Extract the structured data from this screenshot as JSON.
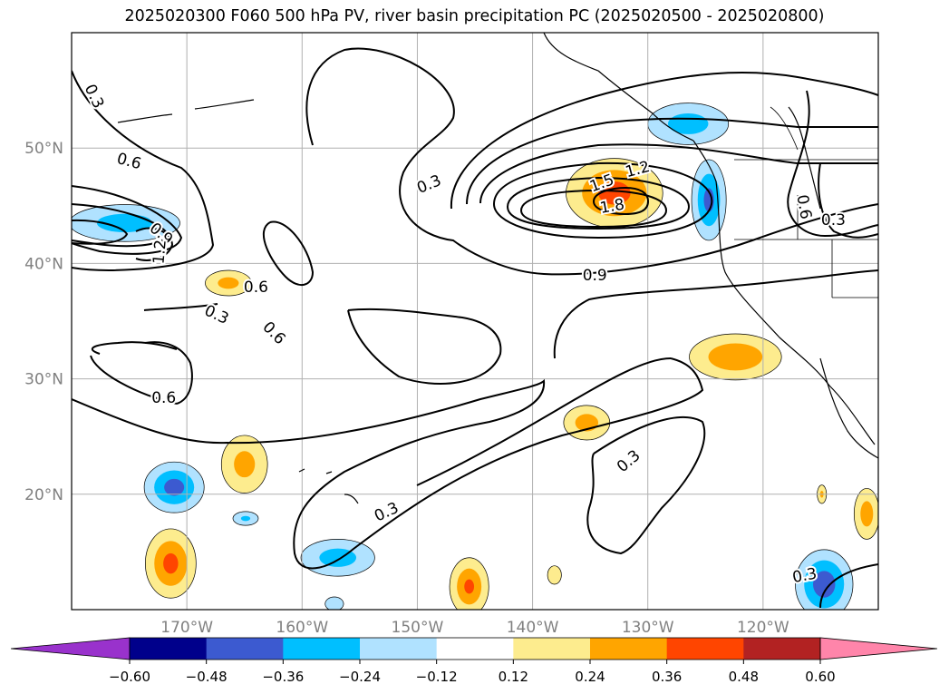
{
  "chart_data": {
    "type": "contour map",
    "title": "2025020300 F060 500 hPa PV, river basin precipitation PC (2025020500 - 2025020800)",
    "lon_range": [
      -180,
      -110
    ],
    "lat_range": [
      10,
      60
    ],
    "lon_ticks": [
      {
        "value": -170,
        "label": "170°W"
      },
      {
        "value": -160,
        "label": "160°W"
      },
      {
        "value": -150,
        "label": "150°W"
      },
      {
        "value": -140,
        "label": "140°W"
      },
      {
        "value": -130,
        "label": "130°W"
      },
      {
        "value": -120,
        "label": "120°W"
      }
    ],
    "lat_ticks": [
      {
        "value": 50,
        "label": "50°N"
      },
      {
        "value": 40,
        "label": "40°N"
      },
      {
        "value": 30,
        "label": "30°N"
      },
      {
        "value": 20,
        "label": "20°N"
      }
    ],
    "grid": true,
    "pv_contour_levels": [
      0.3,
      0.6,
      0.9,
      1.2,
      1.5,
      1.8
    ],
    "pv_contour_labels": [
      {
        "text": "0.3",
        "lon": -178.0,
        "lat": 54.5,
        "rot": 65
      },
      {
        "text": "0.6",
        "lon": -175.0,
        "lat": 48.9,
        "rot": 15
      },
      {
        "text": "0.9",
        "lon": -172.2,
        "lat": 42.6,
        "rot": 40
      },
      {
        "text": "1.2",
        "lon": -172.4,
        "lat": 41.0,
        "rot": -85
      },
      {
        "text": "0.3",
        "lon": -149.0,
        "lat": 46.9,
        "rot": -22
      },
      {
        "text": "1.2",
        "lon": -130.9,
        "lat": 48.2,
        "rot": -15
      },
      {
        "text": "1.5",
        "lon": -134.0,
        "lat": 47.0,
        "rot": -20
      },
      {
        "text": "1.8",
        "lon": -133.1,
        "lat": 45.0,
        "rot": -10
      },
      {
        "text": "0.9",
        "lon": -134.6,
        "lat": 39.0,
        "rot": 0
      },
      {
        "text": "0.6",
        "lon": -164.0,
        "lat": 38.0,
        "rot": 0
      },
      {
        "text": "0.3",
        "lon": -167.4,
        "lat": 35.6,
        "rot": 25
      },
      {
        "text": "0.6",
        "lon": -162.4,
        "lat": 34.0,
        "rot": 45
      },
      {
        "text": "0.6",
        "lon": -172.0,
        "lat": 28.4,
        "rot": 0
      },
      {
        "text": "0.3",
        "lon": -131.7,
        "lat": 22.9,
        "rot": -40
      },
      {
        "text": "0.3",
        "lon": -152.7,
        "lat": 18.5,
        "rot": -25
      },
      {
        "text": "0.6",
        "lon": -116.4,
        "lat": 44.9,
        "rot": 80
      },
      {
        "text": "0.3",
        "lon": -113.9,
        "lat": 43.8,
        "rot": 0
      },
      {
        "text": "0.3",
        "lon": -116.4,
        "lat": 13.0,
        "rot": -10
      }
    ],
    "precip_pc_colorbar": {
      "levels": [
        "−0.60",
        "−0.48",
        "−0.36",
        "−0.24",
        "−0.12",
        "0.12",
        "0.24",
        "0.36",
        "0.48",
        "0.60"
      ],
      "colors": [
        "#9932cc",
        "#00008b",
        "#3c5ad0",
        "#00bfff",
        "#b0e2ff",
        "#ffffff",
        "#fdec8e",
        "#ffa500",
        "#ff4500",
        "#b22222",
        "#ff85aa"
      ],
      "extend": "both"
    },
    "precip_pc_features": [
      {
        "lon": -175.4,
        "lat": 43.5,
        "rx_deg": 4.8,
        "ry_deg": 1.6,
        "value": -0.3
      },
      {
        "lon": -132.9,
        "lat": 46.1,
        "rx_deg": 4.2,
        "ry_deg": 3.0,
        "value": 0.42
      },
      {
        "lon": -126.5,
        "lat": 52.1,
        "rx_deg": 3.5,
        "ry_deg": 1.8,
        "value": -0.3
      },
      {
        "lon": -124.7,
        "lat": 45.5,
        "rx_deg": 1.5,
        "ry_deg": 3.5,
        "value": -0.4
      },
      {
        "lon": -122.4,
        "lat": 31.9,
        "rx_deg": 4.0,
        "ry_deg": 2.0,
        "value": 0.35
      },
      {
        "lon": -135.3,
        "lat": 26.2,
        "rx_deg": 2.0,
        "ry_deg": 1.5,
        "value": 0.3
      },
      {
        "lon": -166.4,
        "lat": 38.3,
        "rx_deg": 2.0,
        "ry_deg": 1.1,
        "value": 0.28
      },
      {
        "lon": -165.0,
        "lat": 22.6,
        "rx_deg": 2.0,
        "ry_deg": 2.5,
        "value": 0.28
      },
      {
        "lon": -171.1,
        "lat": 20.6,
        "rx_deg": 2.6,
        "ry_deg": 2.2,
        "value": -0.42
      },
      {
        "lon": -164.9,
        "lat": 17.9,
        "rx_deg": 1.1,
        "ry_deg": 0.6,
        "value": -0.25
      },
      {
        "lon": -171.4,
        "lat": 14.0,
        "rx_deg": 2.2,
        "ry_deg": 3.0,
        "value": 0.4
      },
      {
        "lon": -156.9,
        "lat": 14.5,
        "rx_deg": 3.2,
        "ry_deg": 1.6,
        "value": -0.3
      },
      {
        "lon": -145.5,
        "lat": 12.0,
        "rx_deg": 1.7,
        "ry_deg": 2.5,
        "value": 0.38
      },
      {
        "lon": -138.1,
        "lat": 13.0,
        "rx_deg": 0.6,
        "ry_deg": 0.8,
        "value": 0.2
      },
      {
        "lon": -157.2,
        "lat": 10.5,
        "rx_deg": 0.8,
        "ry_deg": 0.6,
        "value": -0.22
      },
      {
        "lon": -114.7,
        "lat": 12.2,
        "rx_deg": 2.5,
        "ry_deg": 3.0,
        "value": -0.45
      },
      {
        "lon": -114.9,
        "lat": 20.0,
        "rx_deg": 0.4,
        "ry_deg": 0.8,
        "value": 0.25
      },
      {
        "lon": -111.0,
        "lat": 18.3,
        "rx_deg": 1.1,
        "ry_deg": 2.2,
        "value": 0.3
      }
    ]
  }
}
